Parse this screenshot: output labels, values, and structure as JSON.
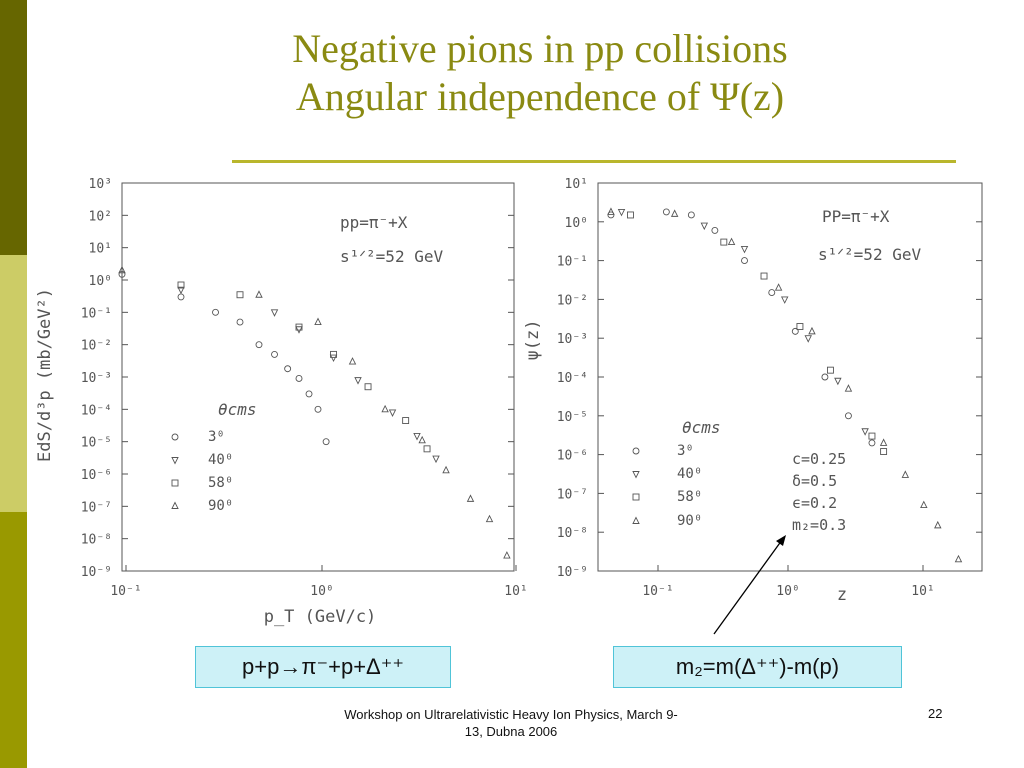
{
  "slide": {
    "title_line1": "Negative pions in pp collisions",
    "title_line2": "Angular independence of Ψ(z)",
    "footer": "Workshop on Ultrarelativistic Heavy Ion Physics, March 9-13, Dubna 2006",
    "page_number": "22",
    "box_left": "p+p→π⁻+p+Δ⁺⁺",
    "box_right": "m₂=m(Δ⁺⁺)-m(p)",
    "colors": {
      "title": "#8a8a12",
      "sidebar_dark": "#666600",
      "sidebar_light": "#cccc66",
      "sidebar_mid": "#999900",
      "rule": "#b9b62c",
      "box_fill": "#cdf1f7",
      "box_border": "#50c4d8"
    }
  },
  "chart_data": [
    {
      "type": "scatter",
      "xlabel": "p_T (GeV/c)",
      "ylabel": "EdS/d³p (mb/GeV²)",
      "xscale": "log",
      "yscale": "log",
      "xlim": [
        0.1,
        10
      ],
      "ylim": [
        1e-09,
        1000
      ],
      "x_tick_labels": [
        "10⁻¹",
        "10⁰",
        "10¹"
      ],
      "y_tick_labels": [
        "10⁻⁹",
        "10⁻⁸",
        "10⁻⁷",
        "10⁻⁶",
        "10⁻⁵",
        "10⁻⁴",
        "10⁻³",
        "10⁻²",
        "10⁻¹",
        "10⁰",
        "10¹",
        "10²",
        "10³"
      ],
      "annotations": [
        "pp=π⁻+X",
        "s¹ᐟ²=52 GeV"
      ],
      "legend_title": "θcms",
      "legend_position": "bottom-left",
      "series": [
        {
          "name": "3⁰",
          "marker": "circle",
          "points": [
            [
              0.1,
              1.5
            ],
            [
              0.2,
              0.3
            ],
            [
              0.3,
              0.1
            ],
            [
              0.4,
              0.05
            ],
            [
              0.5,
              0.01
            ],
            [
              0.6,
              0.005
            ],
            [
              0.7,
              0.0018
            ],
            [
              0.8,
              0.0009
            ],
            [
              0.9,
              0.0003
            ],
            [
              1.0,
              0.0001
            ],
            [
              1.1,
              1e-05
            ]
          ]
        },
        {
          "name": "40⁰",
          "marker": "triangle-down",
          "points": [
            [
              0.2,
              0.5
            ],
            [
              0.6,
              0.1
            ],
            [
              0.8,
              0.03
            ],
            [
              1.2,
              0.004
            ],
            [
              1.6,
              0.0008
            ],
            [
              2.4,
              8e-05
            ],
            [
              3.2,
              1.5e-05
            ],
            [
              4.0,
              3e-06
            ]
          ]
        },
        {
          "name": "58⁰",
          "marker": "square",
          "points": [
            [
              0.2,
              0.7
            ],
            [
              0.4,
              0.35
            ],
            [
              0.8,
              0.035
            ],
            [
              1.2,
              0.005
            ],
            [
              1.8,
              0.0005
            ],
            [
              2.8,
              4.5e-05
            ],
            [
              3.6,
              6e-06
            ]
          ]
        },
        {
          "name": "90⁰",
          "marker": "triangle-up",
          "points": [
            [
              0.1,
              2
            ],
            [
              0.5,
              0.35
            ],
            [
              1.0,
              0.05
            ],
            [
              1.5,
              0.003
            ],
            [
              2.2,
              0.0001
            ],
            [
              3.4,
              1.1e-05
            ],
            [
              4.5,
              1.3e-06
            ],
            [
              6.0,
              1.7e-07
            ],
            [
              7.5,
              4e-08
            ],
            [
              9.2,
              3e-09
            ]
          ]
        }
      ]
    },
    {
      "type": "scatter",
      "xlabel": "z",
      "ylabel": "ψ(z)",
      "xscale": "log",
      "yscale": "log",
      "xlim": [
        0.04,
        30
      ],
      "ylim": [
        1e-09,
        10
      ],
      "x_tick_labels": [
        "10⁻¹",
        "10⁰",
        "10¹"
      ],
      "y_tick_labels": [
        "10⁻⁹",
        "10⁻⁸",
        "10⁻⁷",
        "10⁻⁶",
        "10⁻⁵",
        "10⁻⁴",
        "10⁻³",
        "10⁻²",
        "10⁻¹",
        "10⁰",
        "10¹"
      ],
      "annotations": [
        "PP=π⁻+X",
        "s¹ᐟ²=52 GeV"
      ],
      "parameters": [
        "c=0.25",
        "δ=0.5",
        "ϵ=0.2",
        "m₂=0.3"
      ],
      "legend_title": "θcms",
      "legend_position": "bottom-left",
      "series": [
        {
          "name": "3⁰",
          "marker": "circle",
          "points": [
            [
              0.05,
              1.5
            ],
            [
              0.13,
              1.8
            ],
            [
              0.2,
              1.5
            ],
            [
              0.3,
              0.6
            ],
            [
              0.5,
              0.1
            ],
            [
              0.8,
              0.015
            ],
            [
              1.2,
              0.0015
            ],
            [
              2.0,
              0.0001
            ],
            [
              3.0,
              1e-05
            ],
            [
              4.5,
              2e-06
            ]
          ]
        },
        {
          "name": "40⁰",
          "marker": "triangle-down",
          "points": [
            [
              0.06,
              1.8
            ],
            [
              0.25,
              0.8
            ],
            [
              0.5,
              0.2
            ],
            [
              1.0,
              0.01
            ],
            [
              1.5,
              0.001
            ],
            [
              2.5,
              8e-05
            ],
            [
              4.0,
              4e-06
            ]
          ]
        },
        {
          "name": "58⁰",
          "marker": "square",
          "points": [
            [
              0.07,
              1.5
            ],
            [
              0.35,
              0.3
            ],
            [
              0.7,
              0.04
            ],
            [
              1.3,
              0.002
            ],
            [
              2.2,
              0.00015
            ],
            [
              4.5,
              3e-06
            ],
            [
              5.5,
              1.2e-06
            ]
          ]
        },
        {
          "name": "90⁰",
          "marker": "triangle-up",
          "points": [
            [
              0.05,
              1.8
            ],
            [
              0.15,
              1.6
            ],
            [
              0.4,
              0.3
            ],
            [
              0.9,
              0.02
            ],
            [
              1.6,
              0.0015
            ],
            [
              3.0,
              5e-05
            ],
            [
              5.5,
              2e-06
            ],
            [
              8.0,
              3e-07
            ],
            [
              11.0,
              5e-08
            ],
            [
              14.0,
              1.5e-08
            ],
            [
              20.0,
              2e-09
            ]
          ]
        }
      ]
    }
  ]
}
